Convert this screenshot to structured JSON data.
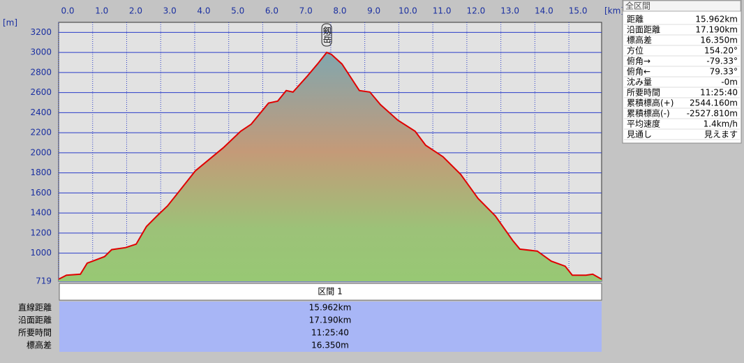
{
  "chart_data": {
    "type": "area",
    "x_unit": "[km]",
    "y_unit": "[m]",
    "annotation": "剱岳",
    "x": [
      0,
      0.23,
      0.64,
      0.84,
      1.0,
      1.35,
      1.56,
      1.97,
      2.28,
      2.58,
      2.89,
      3.2,
      3.61,
      4.02,
      4.43,
      4.84,
      5.35,
      5.66,
      6.17,
      6.44,
      6.69,
      6.89,
      7.3,
      7.61,
      7.88,
      8.02,
      8.33,
      8.84,
      9.15,
      9.46,
      9.97,
      10.48,
      10.79,
      11.3,
      11.82,
      12.33,
      12.84,
      13.35,
      13.56,
      14.07,
      14.48,
      14.89,
      15.1,
      15.5,
      15.7,
      15.962
    ],
    "series": [
      {
        "color": "#e00000",
        "values": [
          740,
          780,
          790,
          900,
          920,
          965,
          1035,
          1055,
          1090,
          1265,
          1370,
          1470,
          1645,
          1820,
          1935,
          2050,
          2215,
          2285,
          2495,
          2515,
          2620,
          2605,
          2760,
          2885,
          3000,
          2980,
          2885,
          2620,
          2605,
          2480,
          2325,
          2215,
          2075,
          1960,
          1785,
          1545,
          1370,
          1125,
          1040,
          1020,
          920,
          870,
          780,
          780,
          790,
          740
        ]
      }
    ],
    "xlim": [
      0,
      15.962
    ],
    "xticks": [
      {
        "value": 0,
        "label": "0.0"
      },
      {
        "value": 1,
        "label": "1.0"
      },
      {
        "value": 2,
        "label": "2.0"
      },
      {
        "value": 3,
        "label": "3.0"
      },
      {
        "value": 4,
        "label": "4.0"
      },
      {
        "value": 5,
        "label": "5.0"
      },
      {
        "value": 6,
        "label": "6.0"
      },
      {
        "value": 7,
        "label": "7.0"
      },
      {
        "value": 8,
        "label": "8.0"
      },
      {
        "value": 9,
        "label": "9.0"
      },
      {
        "value": 10,
        "label": "10.0"
      },
      {
        "value": 11,
        "label": "11.0"
      },
      {
        "value": 12,
        "label": "12.0"
      },
      {
        "value": 13,
        "label": "13.0"
      },
      {
        "value": 14,
        "label": "14.0"
      },
      {
        "value": 15,
        "label": "15.0"
      }
    ],
    "ylim": [
      719,
      3300
    ],
    "yticks": [
      719,
      1000,
      1200,
      1400,
      1600,
      1800,
      2000,
      2200,
      2400,
      2600,
      2800,
      3000,
      3200
    ],
    "grid": true
  },
  "segment_table": {
    "header": "区間 1",
    "rows": [
      [
        "直線距離",
        "15.962km"
      ],
      [
        "沿面距離",
        "17.190km"
      ],
      [
        "所要時間",
        "11:25:40"
      ],
      [
        "標高差",
        "16.350m"
      ]
    ]
  },
  "summary_panel": {
    "title": "全区間",
    "rows": [
      [
        "距離",
        "15.962km"
      ],
      [
        "沿面距離",
        "17.190km"
      ],
      [
        "標高差",
        "16.350m"
      ],
      [
        "方位",
        "154.20°"
      ],
      [
        "俯角→",
        "-79.33°"
      ],
      [
        "俯角←",
        "79.33°"
      ],
      [
        "沈み量",
        "-0m"
      ],
      [
        "所要時間",
        "11:25:40"
      ],
      [
        "累積標高(+)",
        "2544.160m"
      ],
      [
        "累積標高(-)",
        "-2527.810m"
      ],
      [
        "平均速度",
        "1.4km/h"
      ],
      [
        "見通し",
        "見えます"
      ]
    ]
  }
}
